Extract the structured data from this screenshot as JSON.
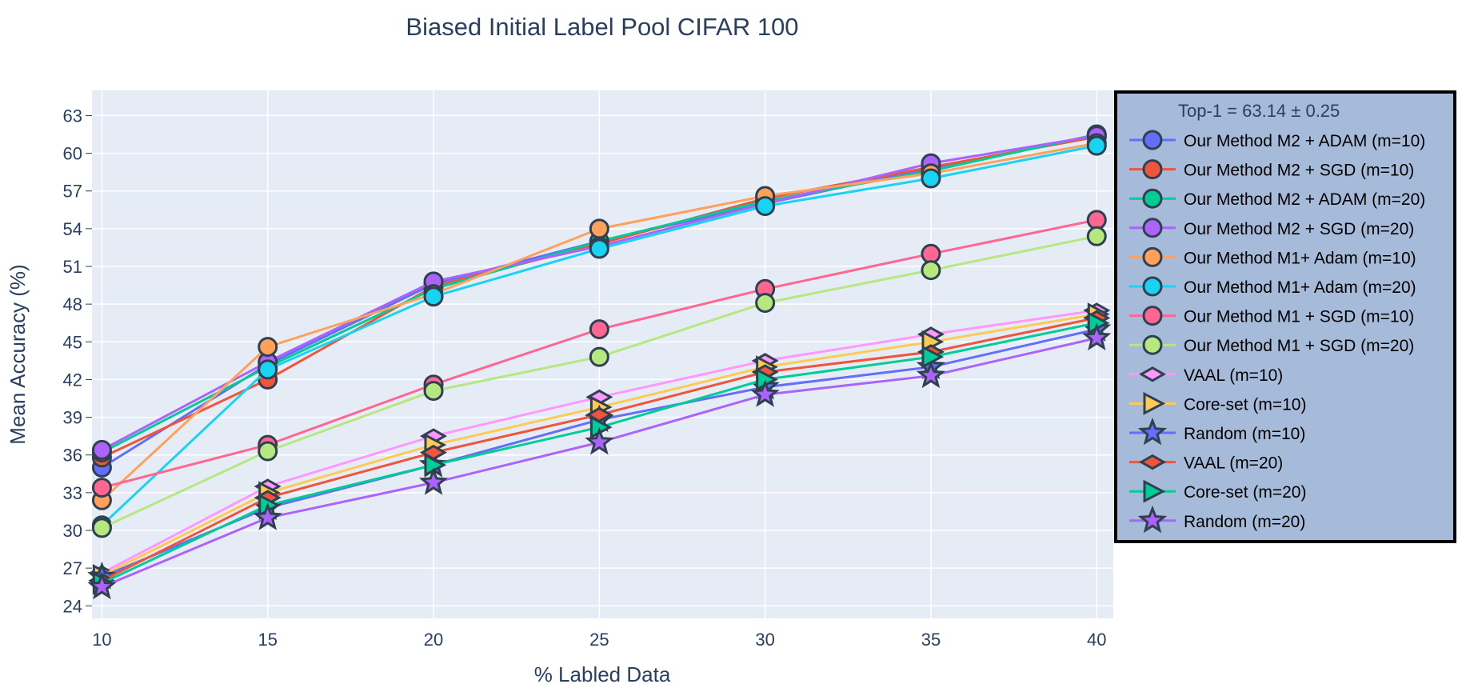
{
  "chart_data": {
    "type": "line",
    "title": "Biased Initial Label Pool CIFAR 100",
    "xlabel": "% Labled Data",
    "ylabel": "Mean Accuracy (%)",
    "x": [
      10,
      15,
      20,
      25,
      30,
      35,
      40
    ],
    "xlim": [
      9.7,
      40.5
    ],
    "ylim": [
      23,
      65
    ],
    "xticks": [
      10,
      15,
      20,
      25,
      30,
      35,
      40
    ],
    "yticks": [
      24,
      27,
      30,
      33,
      36,
      39,
      42,
      45,
      48,
      51,
      54,
      57,
      60,
      63
    ],
    "grid": true,
    "plot_bg": "#e5ecf6",
    "legend": {
      "title": "Top-1 = 63.14 ± 0.25",
      "position": "right",
      "bg": "#a6bbd9",
      "border": "#000000"
    },
    "series": [
      {
        "name": "Our Method M2 + ADAM (m=10)",
        "color": "#636efa",
        "marker": "circle",
        "values": [
          35.0,
          43.2,
          49.6,
          53.0,
          56.0,
          58.8,
          61.4
        ]
      },
      {
        "name": "Our Method M2 + SGD (m=10)",
        "color": "#ef553b",
        "marker": "circle",
        "values": [
          35.8,
          42.0,
          49.4,
          52.8,
          56.4,
          58.9,
          61.3
        ]
      },
      {
        "name": "Our Method M2 + ADAM (m=20)",
        "color": "#00cc96",
        "marker": "circle",
        "values": [
          36.2,
          43.0,
          49.2,
          53.0,
          56.2,
          58.6,
          61.5
        ]
      },
      {
        "name": "Our Method M2 + SGD (m=20)",
        "color": "#ab63fa",
        "marker": "circle",
        "values": [
          36.4,
          43.4,
          49.8,
          52.6,
          56.0,
          59.2,
          61.4
        ]
      },
      {
        "name": "Our Method M1+ Adam (m=10)",
        "color": "#ffa15a",
        "marker": "circle",
        "values": [
          32.4,
          44.6,
          48.8,
          54.0,
          56.6,
          58.4,
          60.8
        ]
      },
      {
        "name": "Our Method M1+ Adam (m=20)",
        "color": "#19d3f3",
        "marker": "circle",
        "values": [
          30.4,
          42.8,
          48.6,
          52.4,
          55.8,
          58.0,
          60.6
        ]
      },
      {
        "name": "Our Method M1 + SGD (m=10)",
        "color": "#ff6692",
        "marker": "circle",
        "values": [
          33.4,
          36.8,
          41.6,
          46.0,
          49.2,
          52.0,
          54.7
        ]
      },
      {
        "name": "Our Method M1 + SGD (m=20)",
        "color": "#b6e880",
        "marker": "circle",
        "values": [
          30.2,
          36.3,
          41.1,
          43.8,
          48.1,
          50.7,
          53.4
        ]
      },
      {
        "name": "VAAL (m=10)",
        "color": "#ff97ff",
        "marker": "diamond",
        "values": [
          26.6,
          33.5,
          37.5,
          40.6,
          43.5,
          45.6,
          47.5
        ]
      },
      {
        "name": "Core-set (m=10)",
        "color": "#fecb52",
        "marker": "triangle-right",
        "values": [
          26.4,
          33.0,
          36.8,
          39.8,
          43.0,
          45.0,
          47.2
        ]
      },
      {
        "name": "Random (m=10)",
        "color": "#636efa",
        "marker": "star",
        "values": [
          26.3,
          31.8,
          35.2,
          38.8,
          41.4,
          43.0,
          46.0
        ]
      },
      {
        "name": "VAAL (m=20)",
        "color": "#ef553b",
        "marker": "diamond",
        "values": [
          26.0,
          32.6,
          36.2,
          39.2,
          42.6,
          44.2,
          46.9
        ]
      },
      {
        "name": "Core-set (m=20)",
        "color": "#00cc96",
        "marker": "triangle-right",
        "values": [
          25.8,
          32.0,
          35.2,
          38.2,
          42.0,
          43.8,
          46.5
        ]
      },
      {
        "name": "Random (m=20)",
        "color": "#ab63fa",
        "marker": "star",
        "values": [
          25.5,
          31.0,
          33.8,
          37.0,
          40.8,
          42.3,
          45.3
        ]
      }
    ]
  }
}
